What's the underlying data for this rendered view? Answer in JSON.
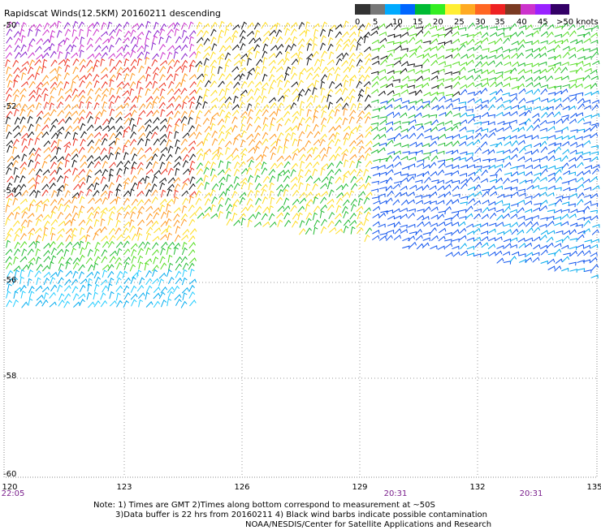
{
  "title": "Rapidscat Winds(12.5KM) 20160211 descending",
  "scale": {
    "colors": [
      "#333333",
      "#777777",
      "#00aaff",
      "#0066ff",
      "#00bb33",
      "#33ee22",
      "#ffee33",
      "#ffaa22",
      "#ff6622",
      "#ee2222",
      "#7a3a22",
      "#cc33cc",
      "#9922ff",
      "#330066"
    ],
    "labels": [
      "0",
      "5",
      "10",
      "15",
      "20",
      "25",
      "30",
      "35",
      "40",
      "45",
      ">50 knots"
    ]
  },
  "axes": {
    "lat_labels": [
      "-50",
      "-52",
      "-54",
      "-56",
      "-58",
      "-60"
    ],
    "lon_labels": [
      "120",
      "123",
      "126",
      "129",
      "132",
      "135"
    ],
    "time_labels": [
      "22:05",
      "20:31",
      "20:31"
    ]
  },
  "notes": [
    "Note: 1) Times are GMT 2)Times along bottom correspond to measurement at ~50S",
    "3)Data buffer is 22 hrs from 20160211 4) Black wind barbs indicate possible contamination",
    "NOAA/NESDIS/Center for Satellite Applications and Research"
  ]
}
